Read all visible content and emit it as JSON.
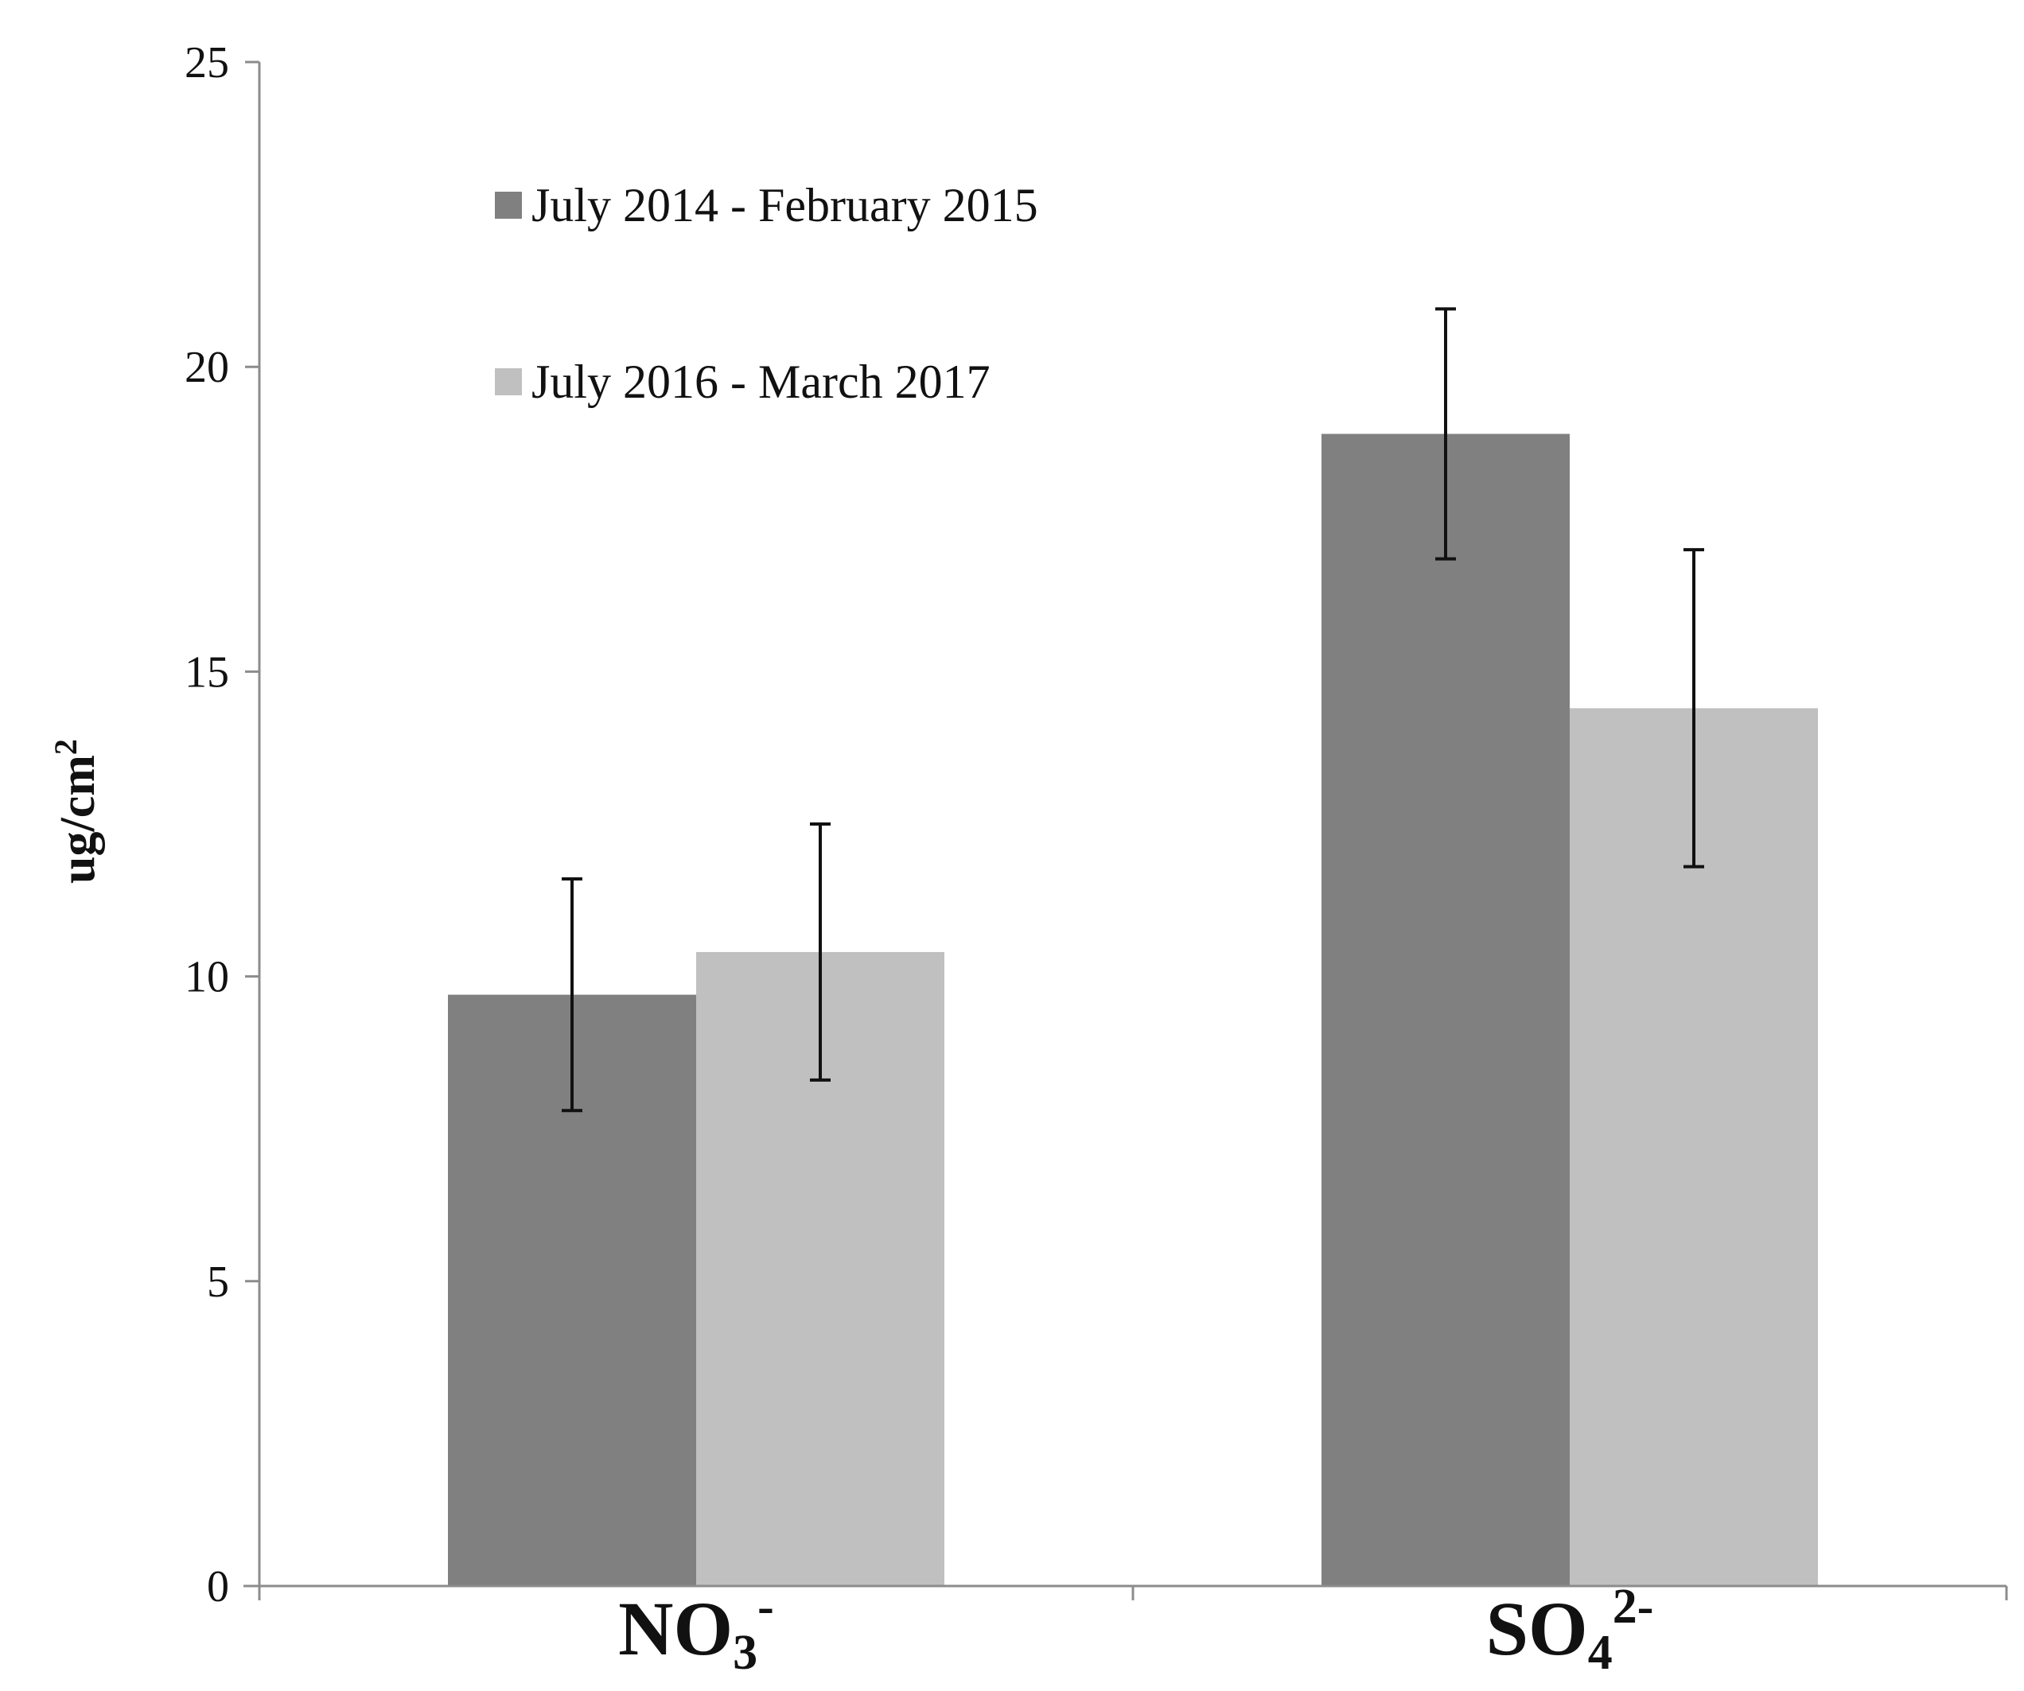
{
  "chart_data": {
    "type": "bar",
    "title": "",
    "xlabel": "",
    "ylabel": "ug/cm²",
    "ylabel_parts": {
      "base": "ug/cm",
      "sup": "2"
    },
    "ylim": [
      0,
      25
    ],
    "yticks": [
      0,
      5,
      10,
      15,
      20,
      25
    ],
    "grid": false,
    "legend_position": "top-left",
    "categories": [
      "NO3-",
      "SO42-"
    ],
    "category_labels": [
      {
        "base": "NO",
        "sub": "3",
        "sup": "-"
      },
      {
        "base": "SO",
        "sub": "4",
        "sup": "2-"
      }
    ],
    "series": [
      {
        "name": "July 2014 - February 2015",
        "color": "#808080",
        "values": [
          9.7,
          18.9
        ],
        "errors": [
          1.9,
          2.05
        ]
      },
      {
        "name": "July 2016 - March 2017",
        "color": "#c0c0c0",
        "values": [
          10.4,
          14.4
        ],
        "errors": [
          2.1,
          2.6
        ]
      }
    ]
  }
}
